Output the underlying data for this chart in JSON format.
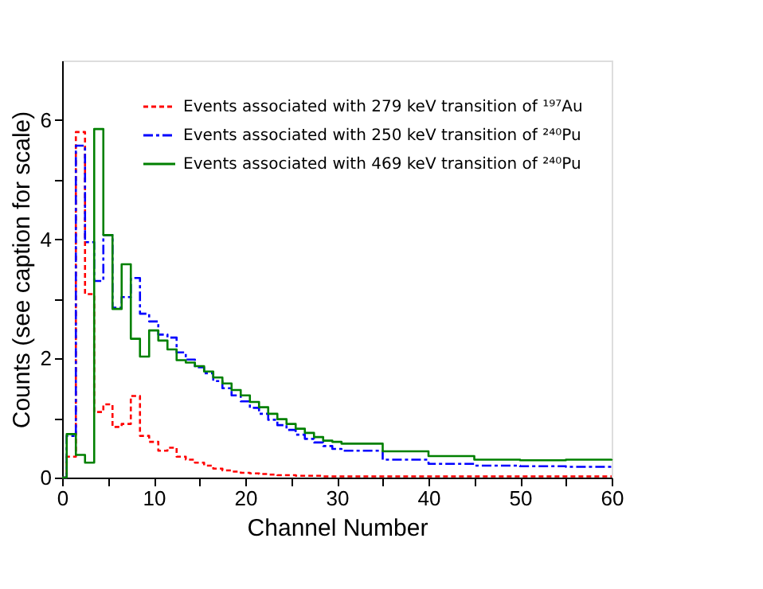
{
  "chart_data": {
    "type": "step",
    "xlabel": "Channel Number",
    "ylabel": "Counts (see caption for scale)",
    "xlim": [
      0,
      60
    ],
    "xticks": [
      0,
      {
        "value": 5,
        "label": null
      },
      10,
      {
        "value": 15,
        "label": null
      },
      20,
      {
        "value": 25,
        "label": null
      },
      30,
      {
        "value": 35,
        "label": null
      },
      40,
      {
        "value": 45,
        "label": null
      },
      50,
      {
        "value": 55,
        "label": null
      },
      60
    ],
    "ylim": [
      0,
      7
    ],
    "yticks": [
      0,
      {
        "value": 1,
        "label": null
      },
      2,
      {
        "value": 3,
        "label": null
      },
      4,
      {
        "value": 5,
        "label": null
      },
      6
    ],
    "x": [
      0,
      0.5,
      1.5,
      2.5,
      3.5,
      4.5,
      5.5,
      6.5,
      7.5,
      8.5,
      9.5,
      10.5,
      11.5,
      12.5,
      13.5,
      14.5,
      15.5,
      16.5,
      17.5,
      18.5,
      19.5,
      20.5,
      21.5,
      22.5,
      23.5,
      24.5,
      25.5,
      26.5,
      27.5,
      28.5,
      29.5,
      30.5,
      35,
      40,
      45,
      50,
      55,
      60
    ],
    "series": [
      {
        "name": "Events associated with 279 keV transition of ¹⁹⁷Au",
        "color": "#ff0000",
        "line_style": "dotted",
        "values": [
          0,
          0.35,
          5.8,
          3.08,
          1.1,
          1.23,
          0.85,
          0.9,
          1.37,
          0.7,
          0.6,
          0.45,
          0.5,
          0.35,
          0.3,
          0.25,
          0.2,
          0.15,
          0.12,
          0.1,
          0.08,
          0.07,
          0.06,
          0.05,
          0.04,
          0.04,
          0.03,
          0.03,
          0.03,
          0.02,
          0.02,
          0.02,
          0.02,
          0.02,
          0.02,
          0.02,
          0.02,
          0.02
        ]
      },
      {
        "name": "Events associated with 250 keV transition of ²⁴⁰Pu",
        "color": "#0000ff",
        "line_style": "dashed",
        "values": [
          0,
          0.7,
          5.57,
          3.95,
          3.3,
          4.07,
          2.85,
          3.03,
          3.35,
          2.75,
          2.62,
          2.4,
          2.35,
          2.1,
          1.98,
          1.85,
          1.75,
          1.62,
          1.5,
          1.38,
          1.28,
          1.17,
          1.07,
          0.97,
          0.88,
          0.8,
          0.72,
          0.65,
          0.59,
          0.53,
          0.48,
          0.45,
          0.3,
          0.23,
          0.2,
          0.19,
          0.18,
          0.18
        ]
      },
      {
        "name": "Events associated with 469 keV transition of ²⁴⁰Pu",
        "color": "#008000",
        "line_style": "solid",
        "values": [
          0,
          0.73,
          0.38,
          0.25,
          5.85,
          4.07,
          2.83,
          3.58,
          2.33,
          2.03,
          2.47,
          2.3,
          2.15,
          1.97,
          1.93,
          1.87,
          1.78,
          1.68,
          1.58,
          1.47,
          1.38,
          1.27,
          1.18,
          1.07,
          0.98,
          0.9,
          0.82,
          0.75,
          0.68,
          0.62,
          0.6,
          0.57,
          0.44,
          0.36,
          0.3,
          0.29,
          0.3,
          0.31
        ]
      }
    ],
    "legend": "top right",
    "grid": false
  }
}
